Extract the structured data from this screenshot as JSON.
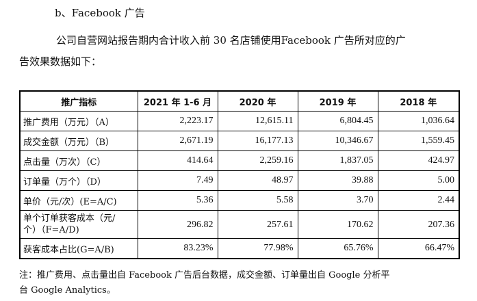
{
  "heading": "b、Facebook 广告",
  "intro": {
    "line1": "公司自营网站报告期内合计收入前 30 名店铺使用Facebook 广告所对应的广",
    "line2": "告效果数据如下："
  },
  "table": {
    "headers": [
      "推广指标",
      "2021 年 1-6 月",
      "2020 年",
      "2019 年",
      "2018 年"
    ],
    "rows": [
      {
        "label": "推广费用（万元）（A）",
        "values": [
          "2,223.17",
          "12,615.11",
          "6,804.45",
          "1,036.64"
        ]
      },
      {
        "label": "成交金额（万元）（B）",
        "values": [
          "2,671.19",
          "16,177.13",
          "10,346.67",
          "1,559.45"
        ]
      },
      {
        "label": "点击量（万次）（C）",
        "values": [
          "414.64",
          "2,259.16",
          "1,837.05",
          "424.97"
        ]
      },
      {
        "label": "订单量（万个）（D）",
        "values": [
          "7.49",
          "48.97",
          "39.88",
          "5.00"
        ]
      },
      {
        "label": "单价（元/次）(E=A/C)",
        "values": [
          "5.36",
          "5.58",
          "3.70",
          "2.44"
        ]
      },
      {
        "label_line1": "单个订单获客成本（元/",
        "label_line2": "个）（F=A/D)",
        "values": [
          "296.82",
          "257.61",
          "170.62",
          "207.36"
        ]
      },
      {
        "label": "获客成本占比(G=A/B)",
        "values": [
          "83.23%",
          "77.98%",
          "65.76%",
          "66.47%"
        ]
      }
    ]
  },
  "note": {
    "line1": "注：推广费用、点击量出自 Facebook 广告后台数据，成交金额、订单量出自 Google 分析平",
    "line2": "台 Google Analytics。"
  }
}
